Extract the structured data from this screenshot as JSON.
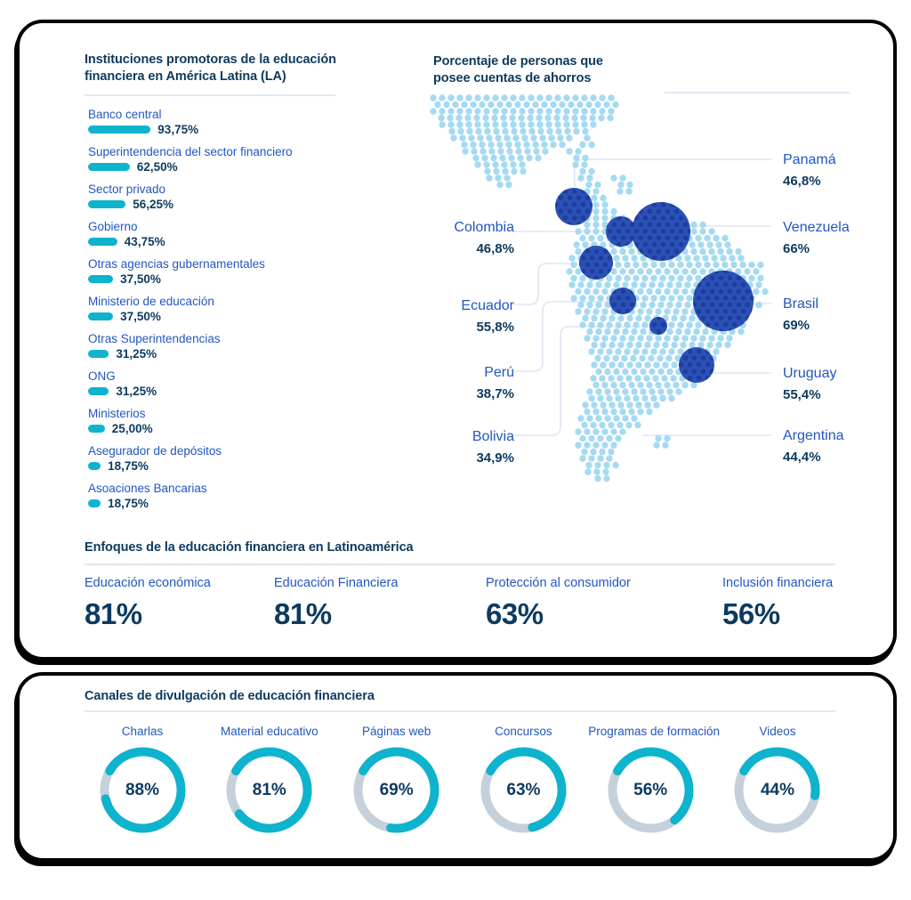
{
  "colors": {
    "navy": "#0d3a5f",
    "blue": "#2156c3",
    "teal": "#0eb3cd",
    "map_dot": "#a5daf2",
    "bubble": "#2b50b6",
    "bubble_dot": "#1e3e9f",
    "donut_track": "#c6d0da",
    "divider": "#dfe9f2",
    "connector": "#dde6f3",
    "card_border": "#000000"
  },
  "institutions": {
    "title": "Instituciones promotoras de la educación financiera en América Latina (LA)",
    "items": [
      {
        "label": "Banco central",
        "value": "93,75%",
        "pct": 93.75
      },
      {
        "label": "Superintendencia del sector financiero",
        "value": "62,50%",
        "pct": 62.5
      },
      {
        "label": "Sector privado",
        "value": "56,25%",
        "pct": 56.25
      },
      {
        "label": "Gobierno",
        "value": "43,75%",
        "pct": 43.75
      },
      {
        "label": "Otras agencias gubernamentales",
        "value": "37,50%",
        "pct": 37.5
      },
      {
        "label": "Ministerio de educación",
        "value": "37,50%",
        "pct": 37.5
      },
      {
        "label": "Otras Superintendencias",
        "value": "31,25%",
        "pct": 31.25
      },
      {
        "label": "ONG",
        "value": "31,25%",
        "pct": 31.25
      },
      {
        "label": "Ministerios",
        "value": "25,00%",
        "pct": 25
      },
      {
        "label": "Asegurador de depósitos",
        "value": "18,75%",
        "pct": 18.75
      },
      {
        "label": "Asoaciones Bancarias",
        "value": "18,75%",
        "pct": 18.75
      }
    ]
  },
  "map": {
    "title": "Porcentaje de personas que posee cuentas de ahorros",
    "left": [
      {
        "name": "Colombia",
        "value": "46,8%"
      },
      {
        "name": "Ecuador",
        "value": "55,8%"
      },
      {
        "name": "Perú",
        "value": "38,7%"
      },
      {
        "name": "Bolivia",
        "value": "34,9%"
      }
    ],
    "right": [
      {
        "name": "Panamá",
        "value": "46,8%"
      },
      {
        "name": "Venezuela",
        "value": "66%"
      },
      {
        "name": "Brasil",
        "value": "69%"
      },
      {
        "name": "Uruguay",
        "value": "55,4%"
      },
      {
        "name": "Argentina",
        "value": "44,4%"
      }
    ]
  },
  "enfoques": {
    "title": "Enfoques de la educación financiera en Latinoamérica",
    "items": [
      {
        "label": "Educación económica",
        "value": "81%"
      },
      {
        "label": "Educación Financiera",
        "value": "81%"
      },
      {
        "label": "Protección al consumidor",
        "value": "63%"
      },
      {
        "label": "Inclusión financiera",
        "value": "56%"
      }
    ]
  },
  "canales": {
    "title": "Canales de divulgación de educación financiera",
    "items": [
      {
        "label": "Charlas",
        "value": "88%",
        "pct": 88
      },
      {
        "label": "Material educativo",
        "value": "81%",
        "pct": 81
      },
      {
        "label": "Páginas web",
        "value": "69%",
        "pct": 69
      },
      {
        "label": "Concursos",
        "value": "63%",
        "pct": 63
      },
      {
        "label": "Programas de formación",
        "value": "56%",
        "pct": 56
      },
      {
        "label": "Videos",
        "value": "44%",
        "pct": 44
      }
    ]
  },
  "chart_data": [
    {
      "type": "bar",
      "orientation": "horizontal",
      "title": "Instituciones promotoras de la educación financiera en América Latina (LA)",
      "categories": [
        "Banco central",
        "Superintendencia del sector financiero",
        "Sector privado",
        "Gobierno",
        "Otras agencias gubernamentales",
        "Ministerio de educación",
        "Otras Superintendencias",
        "ONG",
        "Ministerios",
        "Asegurador de depósitos",
        "Asoaciones Bancarias"
      ],
      "values": [
        93.75,
        62.5,
        56.25,
        43.75,
        37.5,
        37.5,
        31.25,
        31.25,
        25,
        18.75,
        18.75
      ],
      "unit": "%",
      "bar_color": "#0eb3cd",
      "value_labels": [
        "93,75%",
        "62,50%",
        "56,25%",
        "43,75%",
        "37,50%",
        "37,50%",
        "31,25%",
        "31,25%",
        "25,00%",
        "18,75%",
        "18,75%"
      ]
    },
    {
      "type": "scatter",
      "variant": "bubble-map-latin-america",
      "title": "Porcentaje de personas que posee cuentas de ahorros",
      "points": [
        {
          "country": "Panamá",
          "value": 46.8
        },
        {
          "country": "Colombia",
          "value": 46.8
        },
        {
          "country": "Venezuela",
          "value": 66
        },
        {
          "country": "Ecuador",
          "value": 55.8
        },
        {
          "country": "Perú",
          "value": 38.7
        },
        {
          "country": "Bolivia",
          "value": 34.9
        },
        {
          "country": "Brasil",
          "value": 69
        },
        {
          "country": "Uruguay",
          "value": 55.4
        },
        {
          "country": "Argentina",
          "value": 44.4
        }
      ],
      "unit": "%"
    },
    {
      "type": "table",
      "variant": "big-number-stats",
      "title": "Enfoques de la educación financiera en Latinoamérica",
      "categories": [
        "Educación económica",
        "Educación Financiera",
        "Protección al consumidor",
        "Inclusión financiera"
      ],
      "values": [
        81,
        81,
        63,
        56
      ],
      "unit": "%"
    },
    {
      "type": "pie",
      "variant": "donut-multiples",
      "title": "Canales de divulgación de educación financiera",
      "categories": [
        "Charlas",
        "Material educativo",
        "Páginas web",
        "Concursos",
        "Programas de formación",
        "Videos"
      ],
      "values": [
        88,
        81,
        69,
        63,
        56,
        44
      ],
      "unit": "%",
      "arc_color": "#0eb3cd",
      "track_color": "#c6d0da"
    }
  ]
}
